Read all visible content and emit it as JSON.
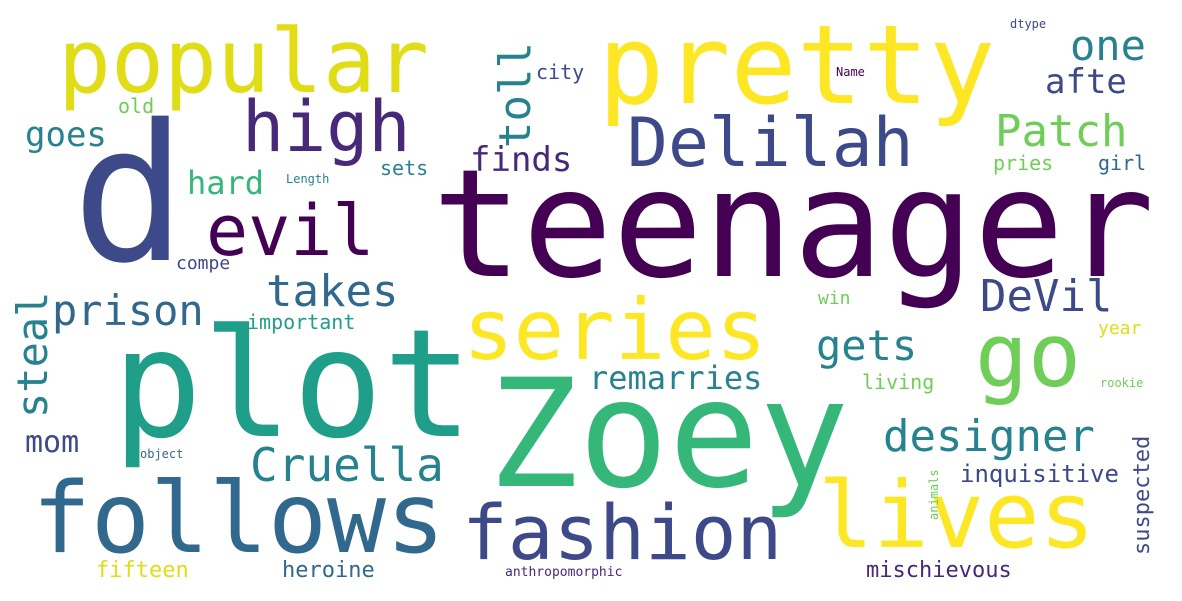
{
  "palette": {
    "purple": "#440154",
    "indigo": "#482878",
    "violet": "#3e4989",
    "blue": "#31688e",
    "steel": "#26828e",
    "teal": "#1f9e89",
    "green": "#35b779",
    "lime": "#6ece58",
    "yellow": "#fde725",
    "gold": "#e0dd17"
  },
  "words": [
    "teenager",
    "d",
    "plot",
    "Zoey",
    "pretty",
    "popular",
    "follows",
    "lives",
    "series",
    "fashion",
    "high",
    "Delilah",
    "evil",
    "go",
    "Cruella",
    "designer",
    "Patch",
    "DeVil",
    "one",
    "toll",
    "takes",
    "steal",
    "prison",
    "gets",
    "remarries",
    "finds",
    "afte",
    "goes",
    "hard",
    "mom",
    "inquisitive",
    "mischievous",
    "heroine",
    "fifteen",
    "suspected",
    "important",
    "city",
    "old",
    "sets",
    "compe",
    "win",
    "year",
    "living",
    "girl",
    "pries",
    "rookie",
    "object",
    "Name",
    "Length",
    "dtype",
    "anthropomorphic",
    "animаls"
  ]
}
